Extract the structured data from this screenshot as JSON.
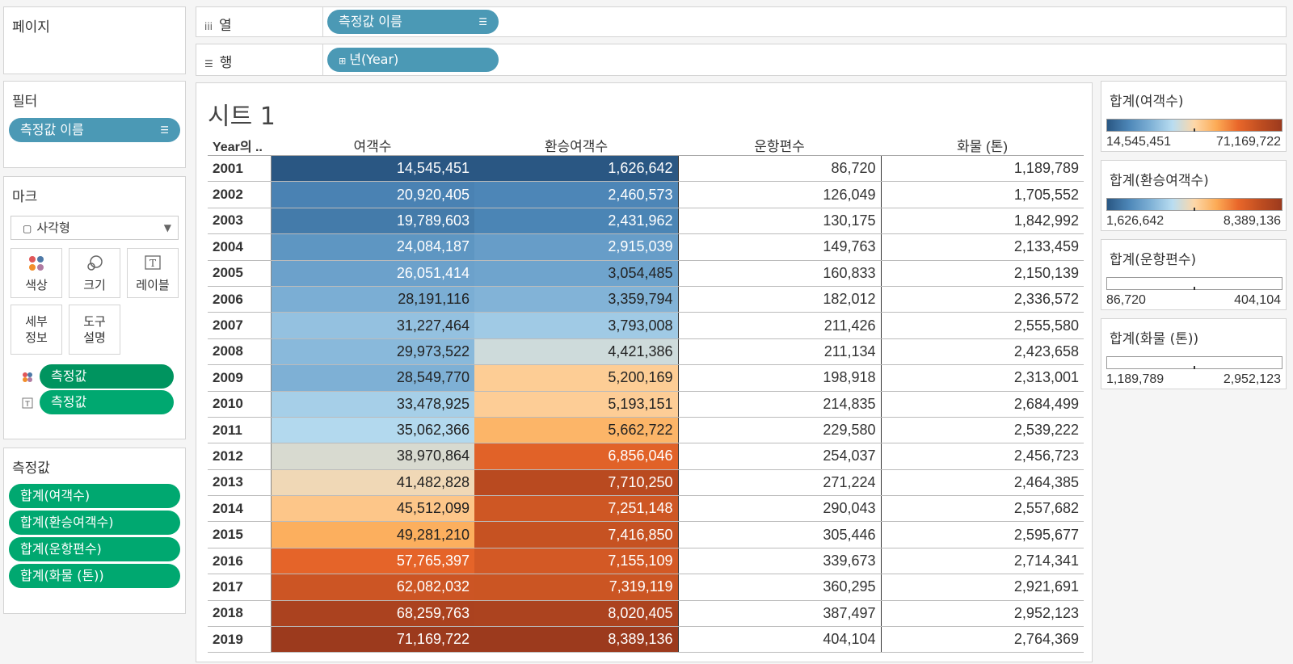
{
  "left": {
    "pages_title": "페이지",
    "filters_title": "필터",
    "filter_pill": "측정값 이름",
    "marks_title": "마크",
    "mark_type": "사각형",
    "mark_cards": [
      {
        "label": "색상"
      },
      {
        "label": "크기"
      },
      {
        "label": "레이블"
      },
      {
        "label1": "세부",
        "label2": "정보"
      },
      {
        "label1": "도구",
        "label2": "설명"
      }
    ],
    "mark_pills": [
      "측정값",
      "측정값"
    ],
    "measures_title": "측정값",
    "measure_pills": [
      "합계(여객수)",
      "합계(환승여객수)",
      "합계(운항편수)",
      "합계(화물 (톤))"
    ]
  },
  "shelves": {
    "columns_label": "열",
    "columns_pill": "측정값 이름",
    "rows_label": "행",
    "rows_pill": "년(Year)"
  },
  "sheet": {
    "title": "시트 1",
    "headers": [
      "Year의 ..",
      "여객수",
      "환승여객수",
      "운항편수",
      "화물 (톤)"
    ],
    "rows": [
      {
        "year": "2001",
        "v1": "14,545,451",
        "v2": "1,626,642",
        "v3": "86,720",
        "v4": "1,189,789"
      },
      {
        "year": "2002",
        "v1": "20,920,405",
        "v2": "2,460,573",
        "v3": "126,049",
        "v4": "1,705,552"
      },
      {
        "year": "2003",
        "v1": "19,789,603",
        "v2": "2,431,962",
        "v3": "130,175",
        "v4": "1,842,992"
      },
      {
        "year": "2004",
        "v1": "24,084,187",
        "v2": "2,915,039",
        "v3": "149,763",
        "v4": "2,133,459"
      },
      {
        "year": "2005",
        "v1": "26,051,414",
        "v2": "3,054,485",
        "v3": "160,833",
        "v4": "2,150,139"
      },
      {
        "year": "2006",
        "v1": "28,191,116",
        "v2": "3,359,794",
        "v3": "182,012",
        "v4": "2,336,572"
      },
      {
        "year": "2007",
        "v1": "31,227,464",
        "v2": "3,793,008",
        "v3": "211,426",
        "v4": "2,555,580"
      },
      {
        "year": "2008",
        "v1": "29,973,522",
        "v2": "4,421,386",
        "v3": "211,134",
        "v4": "2,423,658"
      },
      {
        "year": "2009",
        "v1": "28,549,770",
        "v2": "5,200,169",
        "v3": "198,918",
        "v4": "2,313,001"
      },
      {
        "year": "2010",
        "v1": "33,478,925",
        "v2": "5,193,151",
        "v3": "214,835",
        "v4": "2,684,499"
      },
      {
        "year": "2011",
        "v1": "35,062,366",
        "v2": "5,662,722",
        "v3": "229,580",
        "v4": "2,539,222"
      },
      {
        "year": "2012",
        "v1": "38,970,864",
        "v2": "6,856,046",
        "v3": "254,037",
        "v4": "2,456,723"
      },
      {
        "year": "2013",
        "v1": "41,482,828",
        "v2": "7,710,250",
        "v3": "271,224",
        "v4": "2,464,385"
      },
      {
        "year": "2014",
        "v1": "45,512,099",
        "v2": "7,251,148",
        "v3": "290,043",
        "v4": "2,557,682"
      },
      {
        "year": "2015",
        "v1": "49,281,210",
        "v2": "7,416,850",
        "v3": "305,446",
        "v4": "2,595,677"
      },
      {
        "year": "2016",
        "v1": "57,765,397",
        "v2": "7,155,109",
        "v3": "339,673",
        "v4": "2,714,341"
      },
      {
        "year": "2017",
        "v1": "62,082,032",
        "v2": "7,319,119",
        "v3": "360,295",
        "v4": "2,921,691"
      },
      {
        "year": "2018",
        "v1": "68,259,763",
        "v2": "8,020,405",
        "v3": "387,497",
        "v4": "2,952,123"
      },
      {
        "year": "2019",
        "v1": "71,169,722",
        "v2": "8,389,136",
        "v3": "404,104",
        "v4": "2,764,369"
      }
    ]
  },
  "legends": [
    {
      "title": "합계(여객수)",
      "min": "14,545,451",
      "max": "71,169,722",
      "colored": true
    },
    {
      "title": "합계(환승여객수)",
      "min": "1,626,642",
      "max": "8,389,136",
      "colored": true
    },
    {
      "title": "합계(운항편수)",
      "min": "86,720",
      "max": "404,104",
      "colored": false
    },
    {
      "title": "합계(화물 (톤))",
      "min": "1,189,789",
      "max": "2,952,123",
      "colored": false
    }
  ],
  "colors": {
    "pill_blue": "#4b99b5",
    "pill_green": "#00a870",
    "gradient": [
      "#2a5783",
      "#4d87b8",
      "#7fb1d6",
      "#b9ddf1",
      "#fdd7a8",
      "#fcab56",
      "#e9672a",
      "#c04e21",
      "#9c3a1d"
    ]
  }
}
